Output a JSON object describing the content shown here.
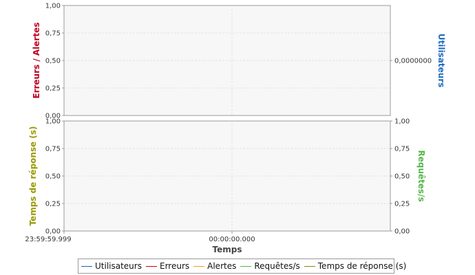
{
  "chart_data": [
    {
      "type": "line",
      "panel": "top",
      "y_left_label": "Erreurs / Alertes",
      "y_left_ticks": [
        "1,00",
        "0,75",
        "0,50",
        "0,25",
        "0,00"
      ],
      "y_left_range": [
        0,
        1
      ],
      "y_right_label": "Utilisateurs",
      "y_right_ticks": [
        "0,0000000"
      ],
      "series": [
        {
          "name": "Utilisateurs",
          "values": []
        },
        {
          "name": "Erreurs",
          "values": []
        },
        {
          "name": "Alertes",
          "values": []
        }
      ],
      "grid": true
    },
    {
      "type": "line",
      "panel": "bottom",
      "y_left_label": "Temps de réponse (s)",
      "y_left_ticks": [
        "1,00",
        "0,75",
        "0,50",
        "0,25",
        "0,00"
      ],
      "y_left_range": [
        0,
        1
      ],
      "y_right_label": "Requêtes/s",
      "y_right_ticks": [
        "1,00",
        "0,75",
        "0,50",
        "0,25",
        "0,00"
      ],
      "y_right_range": [
        0,
        1
      ],
      "x_ticks": [
        "23:59:59.999",
        "00:00:00.000"
      ],
      "xlabel": "Temps",
      "series": [
        {
          "name": "Requêtes/s",
          "values": []
        },
        {
          "name": "Temps de réponse (s)",
          "values": []
        }
      ],
      "grid": true
    }
  ],
  "legend": [
    {
      "label": "Utilisateurs",
      "color": "#1f5fb4"
    },
    {
      "label": "Erreurs",
      "color": "#cc0000"
    },
    {
      "label": "Alertes",
      "color": "#e8a317"
    },
    {
      "label": "Requêtes/s",
      "color": "#55b54a"
    },
    {
      "label": "Temps de réponse (s)",
      "color": "#8a8a00"
    }
  ],
  "colors": {
    "errors_axis": "#c00020",
    "users_axis": "#1f6cc0",
    "response_axis": "#999900",
    "requests_axis": "#55b54a"
  }
}
